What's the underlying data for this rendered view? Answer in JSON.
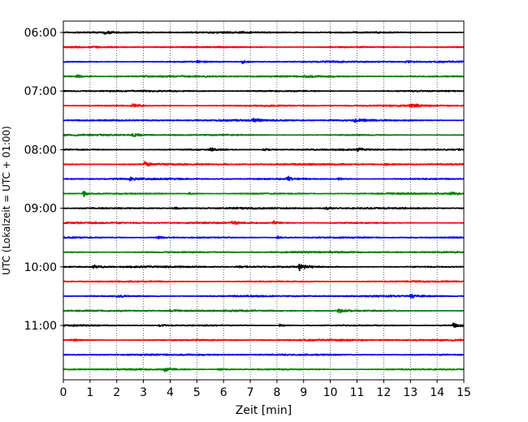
{
  "chart_data": {
    "type": "line",
    "title": "",
    "xlabel": "Zeit  [min]",
    "ylabel": "UTC (Lokalzeit = UTC + 01:00)",
    "xlim": [
      0,
      15
    ],
    "x_ticks": [
      0,
      1,
      2,
      3,
      4,
      5,
      6,
      7,
      8,
      9,
      10,
      11,
      12,
      13,
      14,
      15
    ],
    "x_tick_labels": [
      "0",
      "1",
      "2",
      "3",
      "4",
      "5",
      "6",
      "7",
      "8",
      "9",
      "10",
      "11",
      "12",
      "13",
      "14",
      "15"
    ],
    "y_tick_labels": [
      "06:00",
      "07:00",
      "08:00",
      "09:00",
      "10:00",
      "11:00"
    ],
    "y_tick_rows": [
      0,
      4,
      8,
      12,
      16,
      20
    ],
    "grid": "vertical dotted",
    "trace_colors": [
      "#000000",
      "#ff0000",
      "#0000ff",
      "#008000"
    ],
    "traces": [
      {
        "start": "06:00",
        "color": "#000000",
        "events": [
          {
            "t": 1.5,
            "amp": 0.25
          }
        ]
      },
      {
        "start": "06:15",
        "color": "#ff0000",
        "events": []
      },
      {
        "start": "06:30",
        "color": "#0000ff",
        "events": [
          {
            "t": 6.7,
            "amp": 0.55
          },
          {
            "t": 5.0,
            "amp": 0.25
          },
          {
            "t": 12.8,
            "amp": 0.2
          }
        ]
      },
      {
        "start": "06:45",
        "color": "#008000",
        "events": [
          {
            "t": 0.5,
            "amp": 0.3
          },
          {
            "t": 9.0,
            "amp": 0.3
          }
        ]
      },
      {
        "start": "07:00",
        "color": "#000000",
        "events": []
      },
      {
        "start": "07:15",
        "color": "#ff0000",
        "events": [
          {
            "t": 2.6,
            "amp": 0.45
          },
          {
            "t": 13.0,
            "amp": 0.4
          }
        ]
      },
      {
        "start": "07:30",
        "color": "#0000ff",
        "events": [
          {
            "t": 7.1,
            "amp": 0.6
          },
          {
            "t": 10.9,
            "amp": 0.4
          }
        ]
      },
      {
        "start": "07:45",
        "color": "#008000",
        "events": [
          {
            "t": 2.6,
            "amp": 0.45
          }
        ]
      },
      {
        "start": "08:00",
        "color": "#000000",
        "events": [
          {
            "t": 5.5,
            "amp": 0.4
          },
          {
            "t": 7.5,
            "amp": 0.3
          },
          {
            "t": 11.0,
            "amp": 0.3
          }
        ]
      },
      {
        "start": "08:15",
        "color": "#ff0000",
        "events": [
          {
            "t": 3.05,
            "amp": 0.7
          },
          {
            "t": 12.0,
            "amp": 0.35
          }
        ]
      },
      {
        "start": "08:30",
        "color": "#0000ff",
        "events": [
          {
            "t": 8.35,
            "amp": 0.8
          },
          {
            "t": 2.5,
            "amp": 0.3
          },
          {
            "t": 10.3,
            "amp": 0.3
          }
        ]
      },
      {
        "start": "08:45",
        "color": "#008000",
        "events": [
          {
            "t": 0.75,
            "amp": 0.9
          },
          {
            "t": 4.7,
            "amp": 0.25
          },
          {
            "t": 14.5,
            "amp": 0.3
          }
        ]
      },
      {
        "start": "09:00",
        "color": "#000000",
        "events": [
          {
            "t": 4.1,
            "amp": 0.3
          },
          {
            "t": 9.8,
            "amp": 0.3
          }
        ]
      },
      {
        "start": "09:15",
        "color": "#ff0000",
        "events": [
          {
            "t": 6.3,
            "amp": 0.3
          },
          {
            "t": 7.85,
            "amp": 0.45
          }
        ]
      },
      {
        "start": "09:30",
        "color": "#0000ff",
        "events": [
          {
            "t": 3.5,
            "amp": 0.3
          },
          {
            "t": 8.0,
            "amp": 0.3
          }
        ]
      },
      {
        "start": "09:45",
        "color": "#008000",
        "events": []
      },
      {
        "start": "10:00",
        "color": "#000000",
        "events": [
          {
            "t": 1.1,
            "amp": 0.35
          },
          {
            "t": 6.5,
            "amp": 0.35
          },
          {
            "t": 8.85,
            "amp": 1.0
          }
        ]
      },
      {
        "start": "10:15",
        "color": "#ff0000",
        "events": []
      },
      {
        "start": "10:30",
        "color": "#0000ff",
        "events": [
          {
            "t": 13.0,
            "amp": 0.35
          },
          {
            "t": 2.0,
            "amp": 0.2
          }
        ]
      },
      {
        "start": "10:45",
        "color": "#008000",
        "events": [
          {
            "t": 10.3,
            "amp": 0.5
          },
          {
            "t": 4.0,
            "amp": 0.25
          }
        ]
      },
      {
        "start": "11:00",
        "color": "#000000",
        "events": [
          {
            "t": 14.6,
            "amp": 0.45
          },
          {
            "t": 3.6,
            "amp": 0.25
          },
          {
            "t": 8.1,
            "amp": 0.3
          }
        ]
      },
      {
        "start": "11:15",
        "color": "#ff0000",
        "events": [
          {
            "t": 0.3,
            "amp": 0.3
          }
        ]
      },
      {
        "start": "11:30",
        "color": "#0000ff",
        "events": []
      },
      {
        "start": "11:45",
        "color": "#008000",
        "events": [
          {
            "t": 3.8,
            "amp": 0.35
          },
          {
            "t": 5.8,
            "amp": 0.3
          }
        ]
      }
    ]
  }
}
